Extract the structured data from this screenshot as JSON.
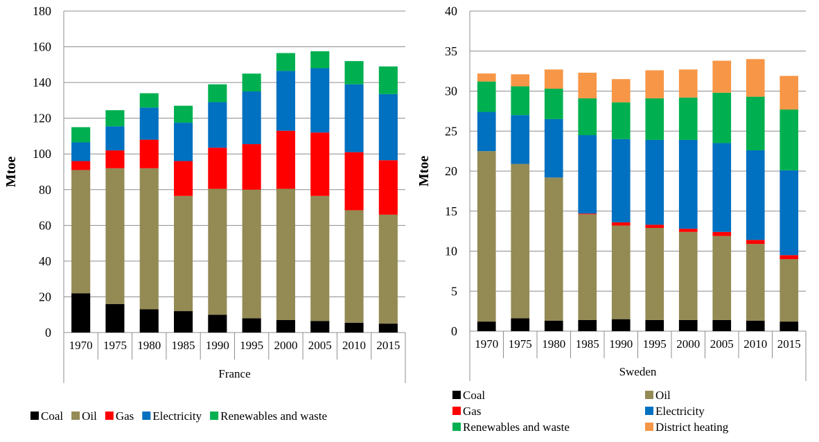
{
  "chart_data": [
    {
      "type": "bar",
      "stacked": true,
      "group_label": "France",
      "ylabel": "Mtoe",
      "ylim": [
        0,
        180
      ],
      "yticks": [
        0,
        20,
        40,
        60,
        80,
        100,
        120,
        140,
        160,
        180
      ],
      "grid": true,
      "legend_position": "bottom",
      "categories": [
        "1970",
        "1975",
        "1980",
        "1985",
        "1990",
        "1995",
        "2000",
        "2005",
        "2010",
        "2015"
      ],
      "series": [
        {
          "name": "Coal",
          "color": "#000000",
          "values": [
            22,
            16,
            13,
            12,
            10,
            8,
            7,
            6.5,
            5.5,
            5
          ]
        },
        {
          "name": "Oil",
          "color": "#948A54",
          "values": [
            69,
            76,
            79,
            64.5,
            70.5,
            72,
            73.5,
            70,
            63,
            61
          ]
        },
        {
          "name": "Gas",
          "color": "#FF0000",
          "values": [
            5,
            10,
            16,
            19.5,
            23,
            25.5,
            32.5,
            35.5,
            32.5,
            30.5
          ]
        },
        {
          "name": "Electricity",
          "color": "#0070C0",
          "values": [
            10.5,
            13.5,
            18,
            21.5,
            25.5,
            29.5,
            33.5,
            36,
            38,
            37
          ]
        },
        {
          "name": "Renewables and waste",
          "color": "#00B050",
          "values": [
            8.5,
            9,
            8,
            9.5,
            10,
            10,
            10,
            9.5,
            13,
            15.5
          ]
        }
      ]
    },
    {
      "type": "bar",
      "stacked": true,
      "group_label": "Sweden",
      "ylabel": "Mtoe",
      "ylim": [
        0,
        40
      ],
      "yticks": [
        0,
        5,
        10,
        15,
        20,
        25,
        30,
        35,
        40
      ],
      "grid": true,
      "legend_position": "bottom",
      "categories": [
        "1970",
        "1975",
        "1980",
        "1985",
        "1990",
        "1995",
        "2000",
        "2005",
        "2010",
        "2015"
      ],
      "series": [
        {
          "name": "Coal",
          "color": "#000000",
          "values": [
            1.2,
            1.6,
            1.3,
            1.4,
            1.5,
            1.4,
            1.4,
            1.4,
            1.3,
            1.2
          ]
        },
        {
          "name": "Oil",
          "color": "#948A54",
          "values": [
            21.3,
            19.3,
            17.9,
            13.2,
            11.7,
            11.5,
            11,
            10.5,
            9.6,
            7.8
          ]
        },
        {
          "name": "Gas",
          "color": "#FF0000",
          "values": [
            0,
            0,
            0,
            0.1,
            0.4,
            0.4,
            0.4,
            0.5,
            0.5,
            0.5
          ]
        },
        {
          "name": "Electricity",
          "color": "#0070C0",
          "values": [
            4.9,
            6.1,
            7.3,
            9.8,
            10.4,
            10.6,
            11.1,
            11.1,
            11.2,
            10.6
          ]
        },
        {
          "name": "Renewables and waste",
          "color": "#00B050",
          "values": [
            3.8,
            3.6,
            3.8,
            4.6,
            4.6,
            5.2,
            5.3,
            6.3,
            6.7,
            7.6
          ]
        },
        {
          "name": "District heating",
          "color": "#F79646",
          "values": [
            1,
            1.5,
            2.4,
            3.2,
            2.9,
            3.5,
            3.5,
            4,
            4.7,
            4.2
          ]
        }
      ]
    }
  ]
}
